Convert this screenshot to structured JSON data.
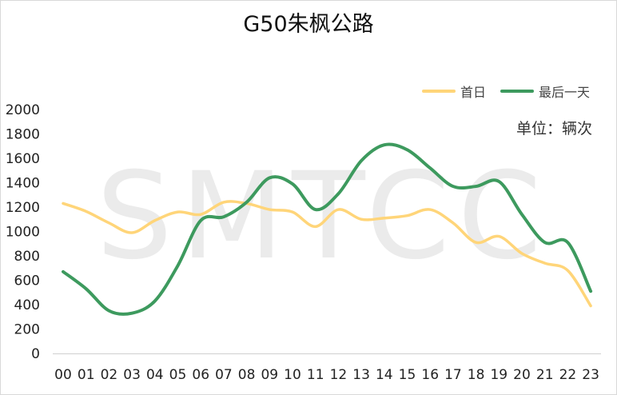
{
  "chart_data": {
    "type": "line",
    "title": "G50朱枫公路",
    "unit_note": "单位：辆次",
    "watermark": "SMTCC",
    "categories": [
      "00",
      "01",
      "02",
      "03",
      "04",
      "05",
      "06",
      "07",
      "08",
      "09",
      "10",
      "11",
      "12",
      "13",
      "14",
      "15",
      "16",
      "17",
      "18",
      "19",
      "20",
      "21",
      "22",
      "23"
    ],
    "ylim": [
      0,
      2000
    ],
    "yticks": [
      0,
      200,
      400,
      600,
      800,
      1000,
      1200,
      1400,
      1600,
      1800,
      2000
    ],
    "grid": false,
    "legend_position": "top-right",
    "series": [
      {
        "name": "首日",
        "color": "#ffd579",
        "values": [
          1230,
          1165,
          1070,
          990,
          1090,
          1160,
          1140,
          1240,
          1230,
          1180,
          1160,
          1040,
          1180,
          1100,
          1110,
          1130,
          1180,
          1070,
          910,
          960,
          820,
          740,
          680,
          390
        ]
      },
      {
        "name": "最后一天",
        "color": "#3d9a5e",
        "values": [
          670,
          530,
          350,
          330,
          430,
          720,
          1090,
          1120,
          1240,
          1440,
          1390,
          1180,
          1310,
          1580,
          1710,
          1670,
          1520,
          1370,
          1370,
          1410,
          1140,
          910,
          910,
          510
        ]
      }
    ]
  }
}
